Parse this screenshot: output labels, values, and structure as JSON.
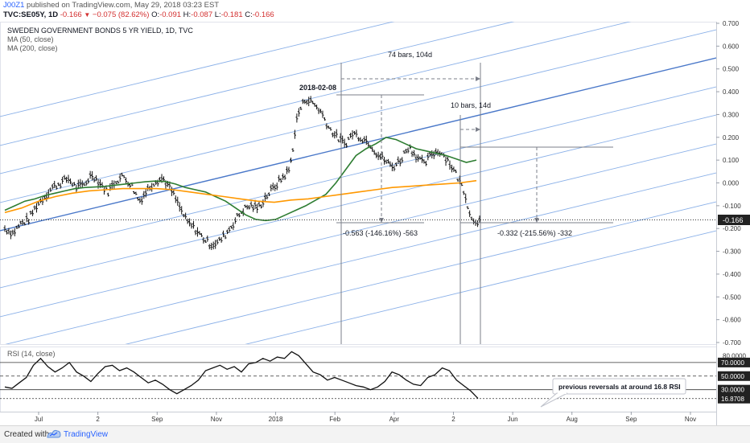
{
  "header": {
    "user": "J00Z1",
    "published": "published on TradingView.com, May 29, 2018 03:23 EST",
    "symbol": "TVC:SE05Y, 1D",
    "last": "-0.166",
    "change": "−0.075 (82.62%)",
    "o_label": "O:",
    "o_value": "-0.091",
    "h_label": "H:",
    "h_value": "-0.087",
    "l_label": "L:",
    "l_value": "-0.181",
    "c_label": "C:",
    "c_value": "-0.166"
  },
  "chart_data": {
    "type": "line",
    "title": "SWEDEN GOVERNMENT BONDS 5 YR YIELD, 1D, TVC",
    "indicators": [
      "MA (50, close)",
      "MA (200, close)"
    ],
    "x_ticks": [
      "Jul",
      "2",
      "Sep",
      "Nov",
      "2018",
      "Feb",
      "Apr",
      "2",
      "Jun",
      "Aug",
      "Sep",
      "Nov"
    ],
    "ylim": [
      -0.7,
      0.7
    ],
    "y_ticks": [
      "0.700",
      "0.600",
      "0.500",
      "0.400",
      "0.300",
      "0.200",
      "0.100",
      "0.000",
      "-0.100",
      "-0.200",
      "-0.300",
      "-0.400",
      "-0.500",
      "-0.600",
      "-0.700"
    ],
    "last_price_label": "-0.166",
    "series": [
      {
        "values": [
          -0.2,
          -0.22,
          -0.18,
          -0.16,
          -0.1,
          -0.06,
          -0.02,
          0.0,
          0.02,
          -0.02,
          -0.01,
          0.04,
          0.0,
          -0.04,
          0.01,
          0.03,
          -0.01,
          -0.08,
          -0.03,
          0.01,
          0.02,
          -0.03,
          -0.1,
          -0.17,
          -0.2,
          -0.24,
          -0.27,
          -0.26,
          -0.22,
          -0.17,
          -0.12,
          -0.1,
          -0.11,
          -0.06,
          -0.02,
          0.02,
          0.06,
          0.3,
          0.37,
          0.35,
          0.31,
          0.24,
          0.2,
          0.17,
          0.22,
          0.2,
          0.18,
          0.13,
          0.1,
          0.07,
          0.1,
          0.16,
          0.12,
          0.08,
          0.13,
          0.14,
          0.1,
          0.04,
          -0.03,
          -0.16,
          -0.166
        ]
      },
      {
        "name": "MA (50, close)",
        "color": "#2e7d32",
        "values": [
          -0.12,
          -0.1,
          -0.08,
          -0.07,
          -0.055,
          -0.045,
          -0.035,
          -0.025,
          -0.02,
          -0.018,
          -0.015,
          -0.01,
          -0.005,
          0.0,
          0.005,
          0.008,
          0.006,
          -0.005,
          -0.02,
          -0.03,
          -0.04,
          -0.06,
          -0.08,
          -0.11,
          -0.14,
          -0.16,
          -0.165,
          -0.16,
          -0.14,
          -0.12,
          -0.1,
          -0.075,
          -0.05,
          0.0,
          0.06,
          0.12,
          0.15,
          0.172,
          0.2,
          0.19,
          0.17,
          0.15,
          0.14,
          0.13,
          0.12,
          0.105,
          0.09,
          0.1
        ]
      },
      {
        "name": "MA (200, close)",
        "color": "#ff9800",
        "values": [
          -0.13,
          -0.11,
          -0.08,
          -0.06,
          -0.045,
          -0.035,
          -0.03,
          -0.025,
          -0.025,
          -0.025,
          -0.03,
          -0.04,
          -0.05,
          -0.06,
          -0.07,
          -0.08,
          -0.085,
          -0.075,
          -0.07,
          -0.06,
          -0.05,
          -0.04,
          -0.03,
          -0.02,
          -0.015,
          -0.01,
          -0.005,
          0.0,
          0.01
        ]
      }
    ],
    "annotations": {
      "date_label": "2018-02-08",
      "bars_top": "74 bars, 104d",
      "bars_small": "10 bars, 14d",
      "measure1": "-0.563 (-146.16%) -563",
      "measure2": "-0.332 (-215.56%) -332"
    },
    "rsi": {
      "title": "RSI (14, close)",
      "ylim": [
        0,
        90
      ],
      "y_ticks": [
        "80.0000",
        "50.0000",
        "30.0000"
      ],
      "levels": [
        "70.0000",
        "50.0000",
        "30.0000",
        "16.8708"
      ],
      "values": [
        34,
        32,
        40,
        48,
        66,
        76,
        64,
        56,
        62,
        70,
        56,
        50,
        42,
        54,
        64,
        66,
        58,
        62,
        56,
        48,
        40,
        44,
        38,
        30,
        24,
        30,
        36,
        44,
        58,
        62,
        66,
        60,
        64,
        56,
        68,
        70,
        76,
        72,
        78,
        76,
        86,
        80,
        68,
        56,
        52,
        44,
        48,
        44,
        40,
        36,
        34,
        30,
        34,
        42,
        56,
        52,
        44,
        38,
        36,
        48,
        52,
        62,
        58,
        44,
        36,
        28,
        17
      ],
      "note": "previous reversals at around 16.8 RSI"
    }
  },
  "footer": {
    "created_with": "Created with",
    "brand": "TradingView"
  }
}
